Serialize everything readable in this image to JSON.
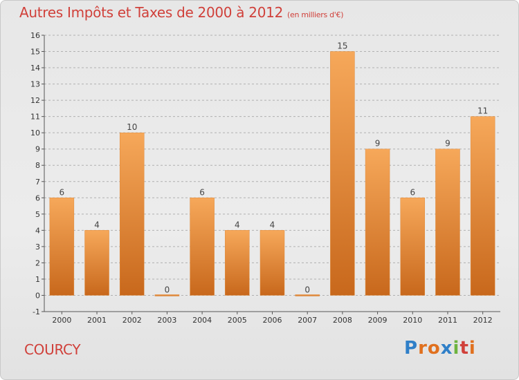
{
  "title": "Autres Impôts et Taxes de 2000 à 2012",
  "unit": "(en milliers d'€)",
  "commune": "COURCY",
  "logo": {
    "letters": [
      "P",
      "r",
      "o",
      "x",
      "i",
      "t",
      "i"
    ],
    "colors": [
      "#2f7fc8",
      "#e0701e",
      "#e0701e",
      "#2f7fc8",
      "#6db33f",
      "#d0403a",
      "#e0701e"
    ]
  },
  "colors": {
    "bar_top": "#f6a85a",
    "bar_bottom": "#c8681c",
    "grid": "#b0b0b0"
  },
  "chart_data": {
    "type": "bar",
    "title": "Autres Impôts et Taxes de 2000 à 2012",
    "xlabel": "",
    "ylabel": "",
    "categories": [
      "2000",
      "2001",
      "2002",
      "2003",
      "2004",
      "2005",
      "2006",
      "2007",
      "2008",
      "2009",
      "2010",
      "2011",
      "2012"
    ],
    "values": [
      6,
      4,
      10,
      0,
      6,
      4,
      4,
      0,
      15,
      9,
      6,
      9,
      11
    ],
    "value_labels": [
      "6",
      "4",
      "10",
      "0",
      "6",
      "4",
      "4",
      "0",
      "15",
      "9",
      "6",
      "9",
      "11"
    ],
    "ylim": [
      -1,
      16
    ],
    "yticks": [
      "-1",
      "0",
      "1",
      "2",
      "3",
      "4",
      "5",
      "6",
      "7",
      "8",
      "9",
      "10",
      "11",
      "12",
      "13",
      "14",
      "15",
      "16"
    ],
    "grid": true
  }
}
